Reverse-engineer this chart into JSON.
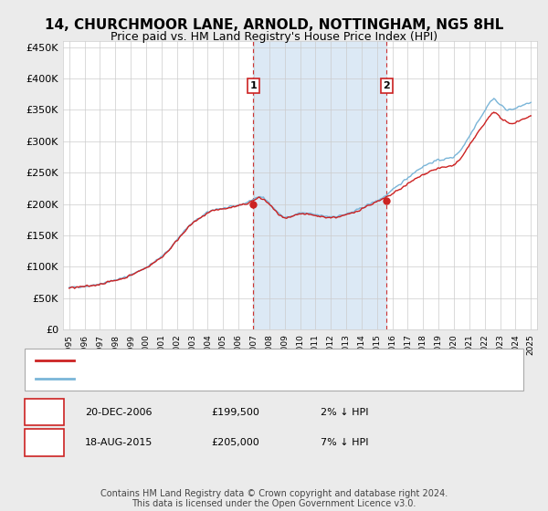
{
  "title": "14, CHURCHMOOR LANE, ARNOLD, NOTTINGHAM, NG5 8HL",
  "subtitle": "Price paid vs. HM Land Registry's House Price Index (HPI)",
  "ylim": [
    0,
    460000
  ],
  "yticks": [
    0,
    50000,
    100000,
    150000,
    200000,
    250000,
    300000,
    350000,
    400000,
    450000
  ],
  "ytick_labels": [
    "£0",
    "£50K",
    "£100K",
    "£150K",
    "£200K",
    "£250K",
    "£300K",
    "£350K",
    "£400K",
    "£450K"
  ],
  "xlim_start": 1994.6,
  "xlim_end": 2025.4,
  "xticks": [
    1995,
    1996,
    1997,
    1998,
    1999,
    2000,
    2001,
    2002,
    2003,
    2004,
    2005,
    2006,
    2007,
    2008,
    2009,
    2010,
    2011,
    2012,
    2013,
    2014,
    2015,
    2016,
    2017,
    2018,
    2019,
    2020,
    2021,
    2022,
    2023,
    2024,
    2025
  ],
  "sale1_x": 2006.97,
  "sale1_y": 199500,
  "sale1_label": "1",
  "sale1_date": "20-DEC-2006",
  "sale1_price": "£199,500",
  "sale1_hpi": "2% ↓ HPI",
  "sale2_x": 2015.63,
  "sale2_y": 205000,
  "sale2_label": "2",
  "sale2_date": "18-AUG-2015",
  "sale2_price": "£205,000",
  "sale2_hpi": "7% ↓ HPI",
  "hpi_line_color": "#7ab5d8",
  "sale_line_color": "#cc2222",
  "marker_color": "#cc2222",
  "shaded_color": "#dce9f5",
  "background_color": "#ebebeb",
  "plot_background": "#ffffff",
  "grid_color": "#cccccc",
  "title_fontsize": 11,
  "subtitle_fontsize": 9,
  "legend_fontsize": 8,
  "tick_fontsize": 8,
  "footer_text": "Contains HM Land Registry data © Crown copyright and database right 2024.\nThis data is licensed under the Open Government Licence v3.0.",
  "footer_fontsize": 7
}
